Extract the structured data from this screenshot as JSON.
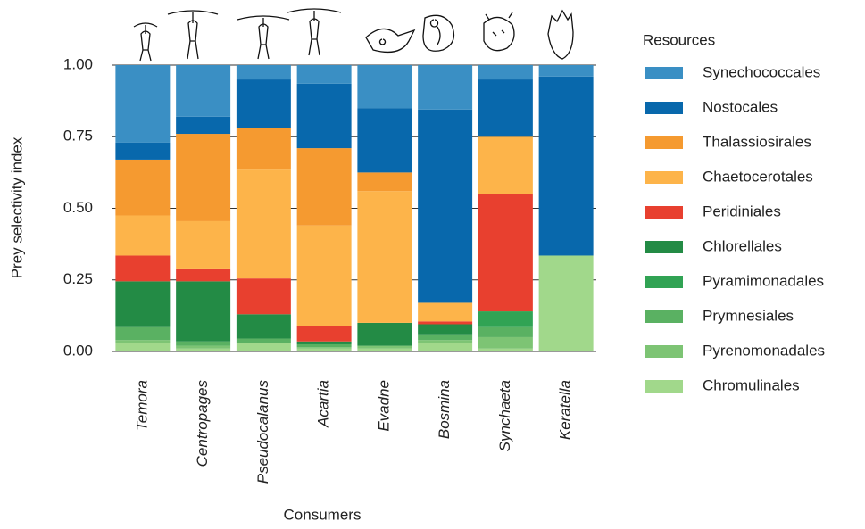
{
  "chart_data": {
    "type": "stacked_bar",
    "x_label": "Consumers",
    "y_label": "Prey selectivity index",
    "legend_title": "Resources",
    "categories": [
      "Temora",
      "Centropages",
      "Pseudocalanus",
      "Acartia",
      "Evadne",
      "Bosmina",
      "Synchaeta",
      "Keratella"
    ],
    "ylim": [
      0,
      1
    ],
    "yticks": [
      {
        "value": 0,
        "label": "0.00"
      },
      {
        "value": 0.25,
        "label": "0.25"
      },
      {
        "value": 0.5,
        "label": "0.50"
      },
      {
        "value": 0.75,
        "label": "0.75"
      },
      {
        "value": 1,
        "label": "1.00"
      }
    ],
    "grid": true,
    "series": [
      {
        "name": "Chromulinales",
        "color": "#a1d88b",
        "values": [
          0.03,
          0.01,
          0.03,
          0.01,
          0.01,
          0.03,
          0.01,
          0.335
        ]
      },
      {
        "name": "Pyrenomonadales",
        "color": "#7dc474",
        "values": [
          0.01,
          0.01,
          0.0,
          0.005,
          0.01,
          0.01,
          0.04,
          0
        ]
      },
      {
        "name": "Prymnesiales",
        "color": "#5ab162",
        "values": [
          0.045,
          0.015,
          0.015,
          0.01,
          0.0,
          0.02,
          0.035,
          0
        ]
      },
      {
        "name": "Pyramimonadales",
        "color": "#31a354",
        "values": [
          0,
          0,
          0,
          0,
          0,
          0,
          0.055,
          0
        ]
      },
      {
        "name": "Chlorellales",
        "color": "#238b45",
        "values": [
          0.16,
          0.21,
          0.085,
          0.01,
          0.08,
          0.035,
          0,
          0
        ]
      },
      {
        "name": "Peridiniales",
        "color": "#e8402f",
        "values": [
          0.09,
          0.045,
          0.125,
          0.055,
          0,
          0.01,
          0.41,
          0
        ]
      },
      {
        "name": "Chaetocerotales",
        "color": "#fdb44a",
        "values": [
          0.14,
          0.165,
          0.38,
          0.35,
          0.46,
          0.065,
          0.2,
          0
        ]
      },
      {
        "name": "Thalassiosirales",
        "color": "#f59a30",
        "values": [
          0.195,
          0.305,
          0.145,
          0.27,
          0.065,
          0,
          0,
          0
        ]
      },
      {
        "name": "Nostocales",
        "color": "#0868ac",
        "values": [
          0.06,
          0.06,
          0.17,
          0.225,
          0.225,
          0.675,
          0.2,
          0.625
        ]
      },
      {
        "name": "Synechococcales",
        "color": "#3a8fc4",
        "values": [
          0.27,
          0.18,
          0.05,
          0.065,
          0.15,
          0.155,
          0.05,
          0.04
        ]
      }
    ]
  }
}
